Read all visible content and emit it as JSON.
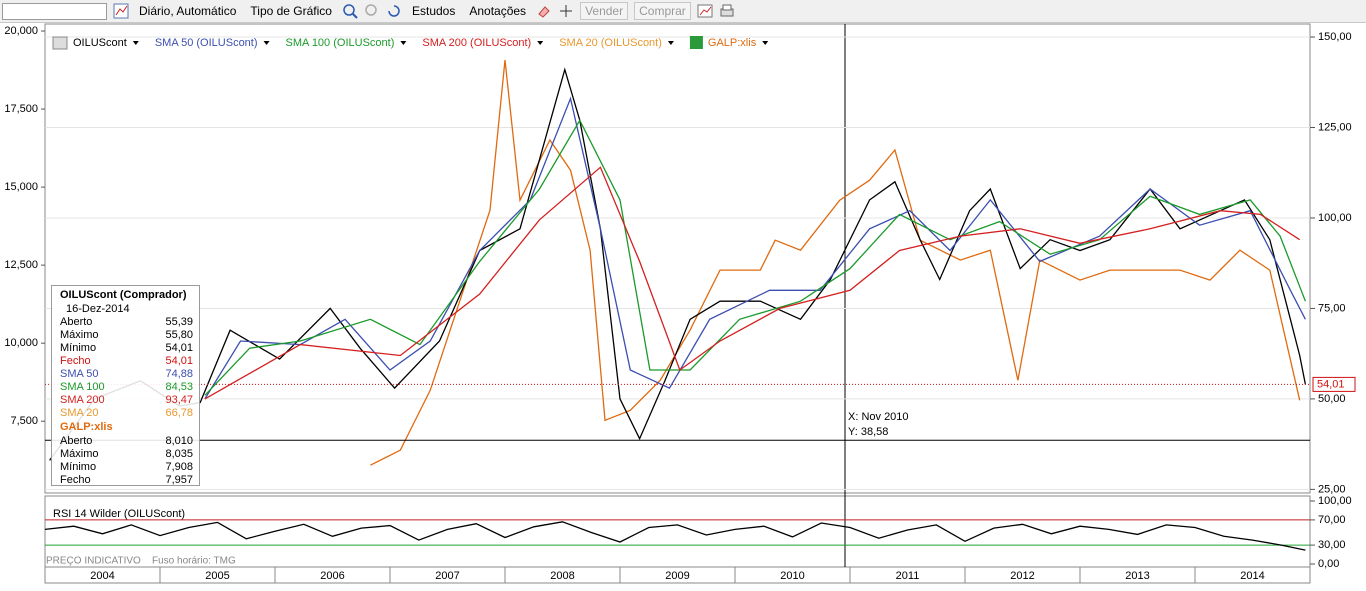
{
  "toolbar": {
    "view": "Diário, Automático",
    "chart_type": "Tipo de Gráfico",
    "studies": "Estudos",
    "annotations": "Anotações",
    "sell": "Vender",
    "buy": "Comprar"
  },
  "info_panel": {
    "title": "OILUScont (Comprador)",
    "date": "16-Dez-2014",
    "rows": [
      {
        "label": "Aberto",
        "value": "55,39",
        "color": "#000000"
      },
      {
        "label": "Máximo",
        "value": "55,80",
        "color": "#000000"
      },
      {
        "label": "Mínimo",
        "value": "54,01",
        "color": "#000000"
      },
      {
        "label": "Fecho",
        "value": "54,01",
        "color": "#d01010"
      },
      {
        "label": "SMA 50",
        "value": "74,88",
        "color": "#3c4fb0"
      },
      {
        "label": "SMA 100",
        "value": "84,53",
        "color": "#1a9a2a"
      },
      {
        "label": "SMA 200",
        "value": "93,47",
        "color": "#d42020"
      },
      {
        "label": "SMA 20",
        "value": "66,78",
        "color": "#e8982e"
      }
    ],
    "sub_title": "GALP:xlis",
    "sub_rows": [
      {
        "label": "Aberto",
        "value": "8,010"
      },
      {
        "label": "Máximo",
        "value": "8,035"
      },
      {
        "label": "Mínimo",
        "value": "7,908"
      },
      {
        "label": "Fecho",
        "value": "7,957"
      }
    ]
  },
  "footer": {
    "indicative": "PREÇO INDICATIVO",
    "timezone": "Fuso horário: TMG"
  },
  "chart_data": [
    {
      "type": "line",
      "xlim": [
        2004,
        2015
      ],
      "xticks": [
        2004,
        2005,
        2006,
        2007,
        2008,
        2009,
        2010,
        2011,
        2012,
        2013,
        2014
      ],
      "ylim": [
        24,
        153.6
      ],
      "yticks": [
        {
          "value": 25,
          "label": "25,00"
        },
        {
          "value": 50,
          "label": "50,00"
        },
        {
          "value": 75,
          "label": "75,00"
        },
        {
          "value": 100,
          "label": "100,00"
        },
        {
          "value": 125,
          "label": "125,00"
        },
        {
          "value": 150,
          "label": "150,00"
        }
      ],
      "y2lim": [
        5200,
        20225
      ],
      "y2ticks": [
        {
          "value": 7500,
          "label": "7,500"
        },
        {
          "value": 10000,
          "label": "10,000"
        },
        {
          "value": 12500,
          "label": "12,500"
        },
        {
          "value": 15000,
          "label": "15,000"
        },
        {
          "value": 17500,
          "label": "17,500"
        },
        {
          "value": 20000,
          "label": "20,000"
        }
      ],
      "grid": true,
      "last_price": {
        "value": 54.01,
        "label": "54,01",
        "color": "#d01010"
      },
      "crosshair": {
        "x_label": "X: Nov 2010",
        "y": 38.58,
        "y_label": "Y: 38,58"
      },
      "series": [
        {
          "name": "OILUScont",
          "color": "#000000",
          "x": [
            2004.04,
            2004.43,
            2004.83,
            2005.17,
            2005.35,
            2005.61,
            2006.04,
            2006.48,
            2006.74,
            2007.04,
            2007.43,
            2007.78,
            2008.13,
            2008.52,
            2008.65,
            2008.83,
            2009,
            2009.17,
            2009.39,
            2009.61,
            2009.87,
            2010.22,
            2010.57,
            2010.83,
            2011.17,
            2011.39,
            2011.61,
            2011.78,
            2012.04,
            2012.22,
            2012.48,
            2012.74,
            2013,
            2013.26,
            2013.61,
            2013.87,
            2014.22,
            2014.43,
            2014.65,
            2014.83,
            2014.91,
            2014.96
          ],
          "values": [
            33,
            50,
            55,
            48,
            49,
            69,
            61,
            75,
            64,
            53,
            66,
            91,
            97,
            141,
            127,
            97,
            50,
            39,
            55,
            72,
            77,
            77,
            72,
            83,
            105,
            110,
            94,
            83,
            102,
            108,
            86,
            94,
            91,
            94,
            108,
            97,
            102,
            105,
            94,
            72,
            62,
            54.01
          ]
        },
        {
          "name": "SMA 50 (OILUScont)",
          "color": "#3c4fb0",
          "x": [
            2005.39,
            2005.7,
            2006.22,
            2006.61,
            2007,
            2007.35,
            2007.78,
            2008.22,
            2008.57,
            2008.83,
            2009.09,
            2009.43,
            2009.78,
            2010.3,
            2010.74,
            2011.17,
            2011.52,
            2011.87,
            2012.22,
            2012.65,
            2013.17,
            2013.61,
            2014.04,
            2014.48,
            2014.83,
            2014.96
          ],
          "values": [
            50,
            66,
            65,
            72,
            58,
            66,
            91,
            105,
            133,
            97,
            58,
            53,
            72,
            80,
            80,
            97,
            102,
            91,
            105,
            88,
            95,
            108,
            98,
            102,
            80,
            72
          ]
        },
        {
          "name": "SMA 100 (OILUScont)",
          "color": "#1a9a2a",
          "x": [
            2005.39,
            2005.78,
            2006.22,
            2006.83,
            2007.26,
            2007.78,
            2008.3,
            2008.65,
            2009,
            2009.26,
            2009.61,
            2010.04,
            2010.57,
            2011,
            2011.43,
            2011.87,
            2012.3,
            2012.74,
            2013.17,
            2013.61,
            2014.04,
            2014.48,
            2014.74,
            2014.96
          ],
          "values": [
            51,
            64,
            66,
            72,
            65,
            88,
            108,
            127,
            105,
            58,
            58,
            72,
            77,
            86,
            101,
            94,
            99,
            90,
            94,
            106,
            101,
            105,
            95,
            77
          ]
        },
        {
          "name": "SMA 200 (OILUScont)",
          "color": "#d42020",
          "x": [
            2005.39,
            2006.22,
            2007.09,
            2007.78,
            2008.3,
            2008.83,
            2009.17,
            2009.52,
            2009.87,
            2010.39,
            2011,
            2011.43,
            2011.96,
            2012.48,
            2013,
            2013.61,
            2014.22,
            2014.57,
            2014.91
          ],
          "values": [
            50,
            65,
            62,
            79,
            99.5,
            114,
            88,
            58,
            66,
            75,
            80,
            91,
            95,
            97,
            93,
            97,
            102,
            101,
            94
          ]
        },
        {
          "name": "GALP:xlis",
          "color": "#e06a10",
          "axis": "y2",
          "x": [
            2006.83,
            2007.09,
            2007.35,
            2007.61,
            2007.87,
            2008,
            2008.13,
            2008.39,
            2008.57,
            2008.74,
            2008.87,
            2009.09,
            2009.35,
            2009.61,
            2009.87,
            2010.22,
            2010.35,
            2010.57,
            2010.91,
            2011.17,
            2011.39,
            2011.61,
            2011.96,
            2012.22,
            2012.46,
            2012.65,
            2013,
            2013.26,
            2013.61,
            2013.87,
            2014.13,
            2014.39,
            2014.65,
            2014.91
          ],
          "values": [
            6090,
            6570,
            8490,
            11380,
            14260,
            19070,
            14580,
            16510,
            15540,
            12980,
            7530,
            7850,
            8810,
            10420,
            12340,
            12340,
            13300,
            12980,
            14580,
            15220,
            16190,
            13300,
            12660,
            12980,
            8810,
            12660,
            12020,
            12340,
            12340,
            12340,
            12020,
            12980,
            12340,
            8170
          ]
        }
      ],
      "extra_legend": [
        {
          "name": "SMA 20 (OILUScont)",
          "color": "#e8982e"
        }
      ]
    },
    {
      "type": "line",
      "title": "RSI 14 Wilder (OILUScont)",
      "xlim": [
        2004,
        2015
      ],
      "ylim": [
        0,
        100
      ],
      "yticks": [
        {
          "value": 0,
          "label": "0,00"
        },
        {
          "value": 30,
          "label": "30,00"
        },
        {
          "value": 70,
          "label": "70,00"
        },
        {
          "value": 100,
          "label": "100,00"
        }
      ],
      "levels": [
        {
          "value": 70,
          "color": "#c02020"
        },
        {
          "value": 30,
          "color": "#20a030"
        }
      ],
      "series": [
        {
          "name": "RSI",
          "color": "#000000",
          "x": [
            2004,
            2004.25,
            2004.5,
            2004.75,
            2005,
            2005.25,
            2005.5,
            2005.75,
            2006,
            2006.25,
            2006.5,
            2006.75,
            2007,
            2007.25,
            2007.5,
            2007.75,
            2008,
            2008.25,
            2008.5,
            2008.75,
            2009,
            2009.25,
            2009.5,
            2009.75,
            2010,
            2010.25,
            2010.5,
            2010.75,
            2011,
            2011.25,
            2011.5,
            2011.75,
            2012,
            2012.25,
            2012.5,
            2012.75,
            2013,
            2013.25,
            2013.5,
            2013.75,
            2014,
            2014.25,
            2014.5,
            2014.75,
            2014.96
          ],
          "values": [
            55,
            60,
            48,
            62,
            45,
            58,
            66,
            40,
            52,
            63,
            44,
            57,
            61,
            38,
            55,
            64,
            42,
            59,
            67,
            50,
            35,
            58,
            62,
            46,
            55,
            60,
            43,
            65,
            58,
            41,
            54,
            62,
            36,
            57,
            63,
            48,
            60,
            55,
            47,
            62,
            58,
            44,
            38,
            30,
            22
          ]
        }
      ]
    }
  ]
}
